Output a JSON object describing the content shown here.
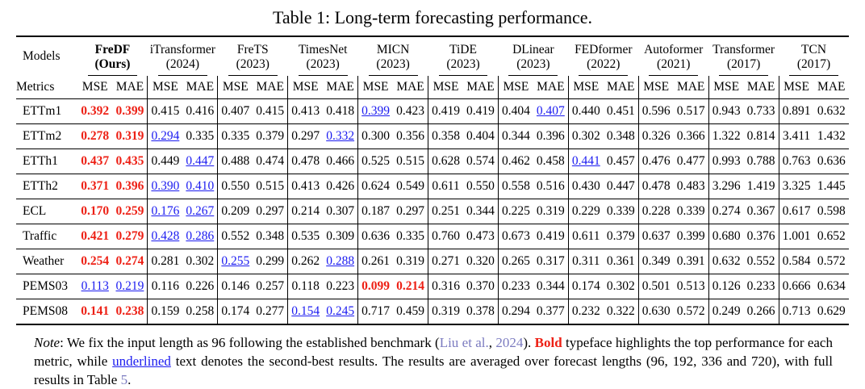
{
  "title": "Table 1: Long-term forecasting performance.",
  "colors": {
    "best_red": "#ed2015",
    "second_blue": "#1b1bf0",
    "citation": "#7b7bc0"
  },
  "table": {
    "corner": {
      "models": "Models",
      "metrics": "Metrics"
    },
    "metric_labels": [
      "MSE",
      "MAE"
    ],
    "models": [
      {
        "name": "FreDF",
        "year": "(Ours)",
        "bold": true
      },
      {
        "name": "iTransformer",
        "year": "(2024)",
        "bold": false
      },
      {
        "name": "FreTS",
        "year": "(2023)",
        "bold": false
      },
      {
        "name": "TimesNet",
        "year": "(2023)",
        "bold": false
      },
      {
        "name": "MICN",
        "year": "(2023)",
        "bold": false
      },
      {
        "name": "TiDE",
        "year": "(2023)",
        "bold": false
      },
      {
        "name": "DLinear",
        "year": "(2023)",
        "bold": false
      },
      {
        "name": "FEDformer",
        "year": "(2022)",
        "bold": false
      },
      {
        "name": "Autoformer",
        "year": "(2021)",
        "bold": false
      },
      {
        "name": "Transformer",
        "year": "(2017)",
        "bold": false
      },
      {
        "name": "TCN",
        "year": "(2017)",
        "bold": false
      }
    ],
    "style_legend": {
      "b": "best (red bold)",
      "u": "second-best (blue underlined)"
    },
    "rows": [
      {
        "dataset": "ETTm1",
        "cells": [
          [
            "0.392",
            "b"
          ],
          [
            "0.399",
            "b"
          ],
          [
            "0.415",
            ""
          ],
          [
            "0.416",
            ""
          ],
          [
            "0.407",
            ""
          ],
          [
            "0.415",
            ""
          ],
          [
            "0.413",
            ""
          ],
          [
            "0.418",
            ""
          ],
          [
            "0.399",
            "u"
          ],
          [
            "0.423",
            ""
          ],
          [
            "0.419",
            ""
          ],
          [
            "0.419",
            ""
          ],
          [
            "0.404",
            ""
          ],
          [
            "0.407",
            "u"
          ],
          [
            "0.440",
            ""
          ],
          [
            "0.451",
            ""
          ],
          [
            "0.596",
            ""
          ],
          [
            "0.517",
            ""
          ],
          [
            "0.943",
            ""
          ],
          [
            "0.733",
            ""
          ],
          [
            "0.891",
            ""
          ],
          [
            "0.632",
            ""
          ]
        ]
      },
      {
        "dataset": "ETTm2",
        "cells": [
          [
            "0.278",
            "b"
          ],
          [
            "0.319",
            "b"
          ],
          [
            "0.294",
            "u"
          ],
          [
            "0.335",
            ""
          ],
          [
            "0.335",
            ""
          ],
          [
            "0.379",
            ""
          ],
          [
            "0.297",
            ""
          ],
          [
            "0.332",
            "u"
          ],
          [
            "0.300",
            ""
          ],
          [
            "0.356",
            ""
          ],
          [
            "0.358",
            ""
          ],
          [
            "0.404",
            ""
          ],
          [
            "0.344",
            ""
          ],
          [
            "0.396",
            ""
          ],
          [
            "0.302",
            ""
          ],
          [
            "0.348",
            ""
          ],
          [
            "0.326",
            ""
          ],
          [
            "0.366",
            ""
          ],
          [
            "1.322",
            ""
          ],
          [
            "0.814",
            ""
          ],
          [
            "3.411",
            ""
          ],
          [
            "1.432",
            ""
          ]
        ]
      },
      {
        "dataset": "ETTh1",
        "cells": [
          [
            "0.437",
            "b"
          ],
          [
            "0.435",
            "b"
          ],
          [
            "0.449",
            ""
          ],
          [
            "0.447",
            "u"
          ],
          [
            "0.488",
            ""
          ],
          [
            "0.474",
            ""
          ],
          [
            "0.478",
            ""
          ],
          [
            "0.466",
            ""
          ],
          [
            "0.525",
            ""
          ],
          [
            "0.515",
            ""
          ],
          [
            "0.628",
            ""
          ],
          [
            "0.574",
            ""
          ],
          [
            "0.462",
            ""
          ],
          [
            "0.458",
            ""
          ],
          [
            "0.441",
            "u"
          ],
          [
            "0.457",
            ""
          ],
          [
            "0.476",
            ""
          ],
          [
            "0.477",
            ""
          ],
          [
            "0.993",
            ""
          ],
          [
            "0.788",
            ""
          ],
          [
            "0.763",
            ""
          ],
          [
            "0.636",
            ""
          ]
        ]
      },
      {
        "dataset": "ETTh2",
        "cells": [
          [
            "0.371",
            "b"
          ],
          [
            "0.396",
            "b"
          ],
          [
            "0.390",
            "u"
          ],
          [
            "0.410",
            "u"
          ],
          [
            "0.550",
            ""
          ],
          [
            "0.515",
            ""
          ],
          [
            "0.413",
            ""
          ],
          [
            "0.426",
            ""
          ],
          [
            "0.624",
            ""
          ],
          [
            "0.549",
            ""
          ],
          [
            "0.611",
            ""
          ],
          [
            "0.550",
            ""
          ],
          [
            "0.558",
            ""
          ],
          [
            "0.516",
            ""
          ],
          [
            "0.430",
            ""
          ],
          [
            "0.447",
            ""
          ],
          [
            "0.478",
            ""
          ],
          [
            "0.483",
            ""
          ],
          [
            "3.296",
            ""
          ],
          [
            "1.419",
            ""
          ],
          [
            "3.325",
            ""
          ],
          [
            "1.445",
            ""
          ]
        ]
      },
      {
        "dataset": "ECL",
        "cells": [
          [
            "0.170",
            "b"
          ],
          [
            "0.259",
            "b"
          ],
          [
            "0.176",
            "u"
          ],
          [
            "0.267",
            "u"
          ],
          [
            "0.209",
            ""
          ],
          [
            "0.297",
            ""
          ],
          [
            "0.214",
            ""
          ],
          [
            "0.307",
            ""
          ],
          [
            "0.187",
            ""
          ],
          [
            "0.297",
            ""
          ],
          [
            "0.251",
            ""
          ],
          [
            "0.344",
            ""
          ],
          [
            "0.225",
            ""
          ],
          [
            "0.319",
            ""
          ],
          [
            "0.229",
            ""
          ],
          [
            "0.339",
            ""
          ],
          [
            "0.228",
            ""
          ],
          [
            "0.339",
            ""
          ],
          [
            "0.274",
            ""
          ],
          [
            "0.367",
            ""
          ],
          [
            "0.617",
            ""
          ],
          [
            "0.598",
            ""
          ]
        ]
      },
      {
        "dataset": "Traffic",
        "cells": [
          [
            "0.421",
            "b"
          ],
          [
            "0.279",
            "b"
          ],
          [
            "0.428",
            "u"
          ],
          [
            "0.286",
            "u"
          ],
          [
            "0.552",
            ""
          ],
          [
            "0.348",
            ""
          ],
          [
            "0.535",
            ""
          ],
          [
            "0.309",
            ""
          ],
          [
            "0.636",
            ""
          ],
          [
            "0.335",
            ""
          ],
          [
            "0.760",
            ""
          ],
          [
            "0.473",
            ""
          ],
          [
            "0.673",
            ""
          ],
          [
            "0.419",
            ""
          ],
          [
            "0.611",
            ""
          ],
          [
            "0.379",
            ""
          ],
          [
            "0.637",
            ""
          ],
          [
            "0.399",
            ""
          ],
          [
            "0.680",
            ""
          ],
          [
            "0.376",
            ""
          ],
          [
            "1.001",
            ""
          ],
          [
            "0.652",
            ""
          ]
        ]
      },
      {
        "dataset": "Weather",
        "cells": [
          [
            "0.254",
            "b"
          ],
          [
            "0.274",
            "b"
          ],
          [
            "0.281",
            ""
          ],
          [
            "0.302",
            ""
          ],
          [
            "0.255",
            "u"
          ],
          [
            "0.299",
            ""
          ],
          [
            "0.262",
            ""
          ],
          [
            "0.288",
            "u"
          ],
          [
            "0.261",
            ""
          ],
          [
            "0.319",
            ""
          ],
          [
            "0.271",
            ""
          ],
          [
            "0.320",
            ""
          ],
          [
            "0.265",
            ""
          ],
          [
            "0.317",
            ""
          ],
          [
            "0.311",
            ""
          ],
          [
            "0.361",
            ""
          ],
          [
            "0.349",
            ""
          ],
          [
            "0.391",
            ""
          ],
          [
            "0.632",
            ""
          ],
          [
            "0.552",
            ""
          ],
          [
            "0.584",
            ""
          ],
          [
            "0.572",
            ""
          ]
        ]
      },
      {
        "dataset": "PEMS03",
        "cells": [
          [
            "0.113",
            "u"
          ],
          [
            "0.219",
            "u"
          ],
          [
            "0.116",
            ""
          ],
          [
            "0.226",
            ""
          ],
          [
            "0.146",
            ""
          ],
          [
            "0.257",
            ""
          ],
          [
            "0.118",
            ""
          ],
          [
            "0.223",
            ""
          ],
          [
            "0.099",
            "b"
          ],
          [
            "0.214",
            "b"
          ],
          [
            "0.316",
            ""
          ],
          [
            "0.370",
            ""
          ],
          [
            "0.233",
            ""
          ],
          [
            "0.344",
            ""
          ],
          [
            "0.174",
            ""
          ],
          [
            "0.302",
            ""
          ],
          [
            "0.501",
            ""
          ],
          [
            "0.513",
            ""
          ],
          [
            "0.126",
            ""
          ],
          [
            "0.233",
            ""
          ],
          [
            "0.666",
            ""
          ],
          [
            "0.634",
            ""
          ]
        ]
      },
      {
        "dataset": "PEMS08",
        "cells": [
          [
            "0.141",
            "b"
          ],
          [
            "0.238",
            "b"
          ],
          [
            "0.159",
            ""
          ],
          [
            "0.258",
            ""
          ],
          [
            "0.174",
            ""
          ],
          [
            "0.277",
            ""
          ],
          [
            "0.154",
            "u"
          ],
          [
            "0.245",
            "u"
          ],
          [
            "0.717",
            ""
          ],
          [
            "0.459",
            ""
          ],
          [
            "0.319",
            ""
          ],
          [
            "0.378",
            ""
          ],
          [
            "0.294",
            ""
          ],
          [
            "0.377",
            ""
          ],
          [
            "0.232",
            ""
          ],
          [
            "0.322",
            ""
          ],
          [
            "0.630",
            ""
          ],
          [
            "0.572",
            ""
          ],
          [
            "0.249",
            ""
          ],
          [
            "0.266",
            ""
          ],
          [
            "0.713",
            ""
          ],
          [
            "0.629",
            ""
          ]
        ]
      }
    ]
  },
  "note": {
    "segments": [
      {
        "t": "Note",
        "s": "italic"
      },
      {
        "t": ": We fix the input length as 96 following the established benchmark (",
        "s": ""
      },
      {
        "t": "Liu et al.",
        "s": "cite"
      },
      {
        "t": ", ",
        "s": ""
      },
      {
        "t": "2024",
        "s": "cite"
      },
      {
        "t": "). ",
        "s": ""
      },
      {
        "t": "Bold",
        "s": "boldred"
      },
      {
        "t": " typeface highlights the top performance for each metric, while ",
        "s": ""
      },
      {
        "t": "underlined",
        "s": "ublue"
      },
      {
        "t": " text denotes the second-best results. The results are averaged over forecast lengths (96, 192, 336 and 720), with full results in Table ",
        "s": ""
      },
      {
        "t": "5",
        "s": "cite"
      },
      {
        "t": ".",
        "s": ""
      }
    ]
  }
}
